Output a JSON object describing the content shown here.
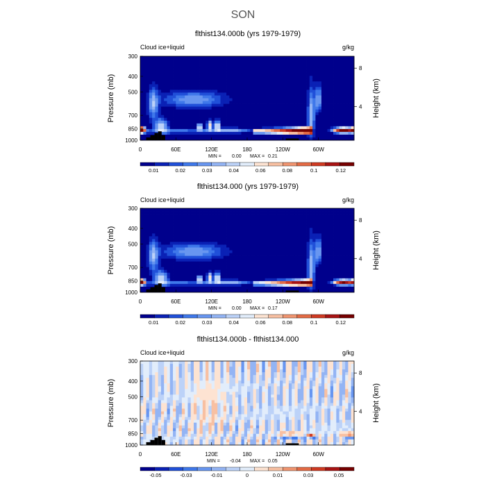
{
  "title": "SON",
  "colors": {
    "sequential": [
      "#00008c",
      "#0a21b5",
      "#2050d9",
      "#3f78ea",
      "#6896f0",
      "#93b4f4",
      "#bcd2f8",
      "#e2edfb",
      "#fde3d2",
      "#f8c0a2",
      "#f09570",
      "#e46b45",
      "#cf3a22",
      "#a81313",
      "#760000"
    ],
    "diverging": [
      "#00008c",
      "#0a21b5",
      "#2050d9",
      "#3f78ea",
      "#6896f0",
      "#93b4f4",
      "#bcd2f8",
      "#e2edfb",
      "#fde3d2",
      "#f8c0a2",
      "#f09570",
      "#e46b45",
      "#cf3a22",
      "#a81313",
      "#760000"
    ],
    "land": "#000000"
  },
  "chart_data": [
    {
      "type": "heatmap",
      "title": "flthist134.000b (yrs 1979-1979)",
      "field_label": "Cloud ice+liquid",
      "units": "g/kg",
      "ylabel": "Pressure (mb)",
      "y2label": "Height (km)",
      "x_ticks": [
        "0",
        "60E",
        "120E",
        "180",
        "120W",
        "60W"
      ],
      "x_tick_lon": [
        0,
        60,
        120,
        180,
        240,
        300
      ],
      "y_ticks": [
        300,
        400,
        500,
        700,
        850,
        1000
      ],
      "y2_ticks": [
        "4",
        "8"
      ],
      "y2_tick_p": [
        616,
        356
      ],
      "min_label": "MIN =",
      "min_value": "0.00",
      "max_label": "MAX =",
      "max_value": "0.21",
      "colorbar_labels": [
        "0.01",
        "0.02",
        "0.03",
        "0.04",
        "0.06",
        "0.08",
        "0.1",
        "0.12"
      ],
      "palette": "sequential",
      "variant": "control"
    },
    {
      "type": "heatmap",
      "title": "flthist134.000 (yrs 1979-1979)",
      "field_label": "Cloud ice+liquid",
      "units": "g/kg",
      "ylabel": "Pressure (mb)",
      "y2label": "Height (km)",
      "x_ticks": [
        "0",
        "60E",
        "120E",
        "180",
        "120W",
        "60W"
      ],
      "x_tick_lon": [
        0,
        60,
        120,
        180,
        240,
        300
      ],
      "y_ticks": [
        300,
        400,
        500,
        700,
        850,
        1000
      ],
      "y2_ticks": [
        "4",
        "8"
      ],
      "y2_tick_p": [
        616,
        356
      ],
      "min_label": "MIN =",
      "min_value": "0.00",
      "max_label": "MAX =",
      "max_value": "0.17",
      "colorbar_labels": [
        "0.01",
        "0.02",
        "0.03",
        "0.04",
        "0.06",
        "0.08",
        "0.1",
        "0.12"
      ],
      "palette": "sequential",
      "variant": "test"
    },
    {
      "type": "heatmap",
      "title": "flthist134.000b - flthist134.000",
      "field_label": "Cloud ice+liquid",
      "units": "g/kg",
      "ylabel": "Pressure (mb)",
      "y2label": "Height (km)",
      "x_ticks": [
        "0",
        "60E",
        "120E",
        "180",
        "120W",
        "60W"
      ],
      "x_tick_lon": [
        0,
        60,
        120,
        180,
        240,
        300
      ],
      "y_ticks": [
        300,
        400,
        500,
        700,
        850,
        1000
      ],
      "y2_ticks": [
        "4",
        "8"
      ],
      "y2_tick_p": [
        616,
        356
      ],
      "min_label": "MIN =",
      "min_value": "-0.04",
      "max_label": "MAX =",
      "max_value": "0.05",
      "colorbar_labels": [
        "-0.05",
        "-0.03",
        "-0.01",
        "0",
        "0.01",
        "0.03",
        "0.05"
      ],
      "palette": "diverging",
      "variant": "diff"
    }
  ]
}
